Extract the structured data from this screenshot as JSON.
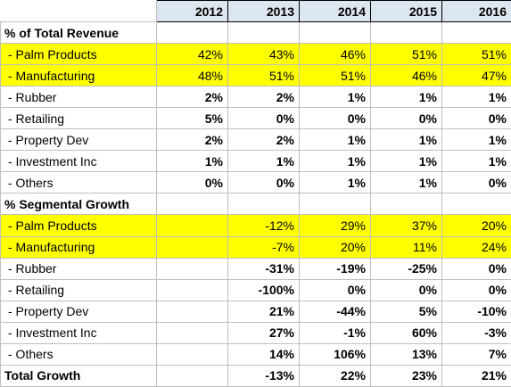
{
  "table": {
    "years": [
      "2012",
      "2013",
      "2014",
      "2015",
      "2016"
    ],
    "sections": [
      {
        "title": "% of Total Revenue",
        "rows": [
          {
            "label": "- Palm Products",
            "values": [
              "42%",
              "43%",
              "46%",
              "51%",
              "51%"
            ],
            "highlight": true
          },
          {
            "label": "- Manufacturing",
            "values": [
              "48%",
              "51%",
              "51%",
              "46%",
              "47%"
            ],
            "highlight": true
          },
          {
            "label": "- Rubber",
            "values": [
              "2%",
              "2%",
              "1%",
              "1%",
              "1%"
            ],
            "highlight": false
          },
          {
            "label": "- Retailing",
            "values": [
              "5%",
              "0%",
              "0%",
              "0%",
              "0%"
            ],
            "highlight": false
          },
          {
            "label": "- Property Dev",
            "values": [
              "2%",
              "2%",
              "1%",
              "1%",
              "1%"
            ],
            "highlight": false
          },
          {
            "label": "- Investment Inc",
            "values": [
              "1%",
              "1%",
              "1%",
              "1%",
              "1%"
            ],
            "highlight": false
          },
          {
            "label": "- Others",
            "values": [
              "0%",
              "0%",
              "1%",
              "1%",
              "0%"
            ],
            "highlight": false
          }
        ]
      },
      {
        "title": "% Segmental Growth",
        "rows": [
          {
            "label": "- Palm Products",
            "values": [
              "-12%",
              "29%",
              "37%",
              "20%"
            ],
            "highlight": true
          },
          {
            "label": "- Manufacturing",
            "values": [
              "-7%",
              "20%",
              "11%",
              "24%"
            ],
            "highlight": true
          },
          {
            "label": "- Rubber",
            "values": [
              "-31%",
              "-19%",
              "-25%",
              "0%"
            ],
            "highlight": false
          },
          {
            "label": "- Retailing",
            "values": [
              "-100%",
              "0%",
              "0%",
              "0%"
            ],
            "highlight": false
          },
          {
            "label": "- Property Dev",
            "values": [
              "21%",
              "-44%",
              "5%",
              "-10%"
            ],
            "highlight": false
          },
          {
            "label": "- Investment Inc",
            "values": [
              "27%",
              "-1%",
              "60%",
              "-3%"
            ],
            "highlight": false
          },
          {
            "label": "- Others",
            "values": [
              "14%",
              "106%",
              "13%",
              "7%"
            ],
            "highlight": false
          }
        ]
      }
    ],
    "total": {
      "label": "Total Growth",
      "values": [
        "-13%",
        "22%",
        "23%",
        "21%"
      ]
    }
  }
}
